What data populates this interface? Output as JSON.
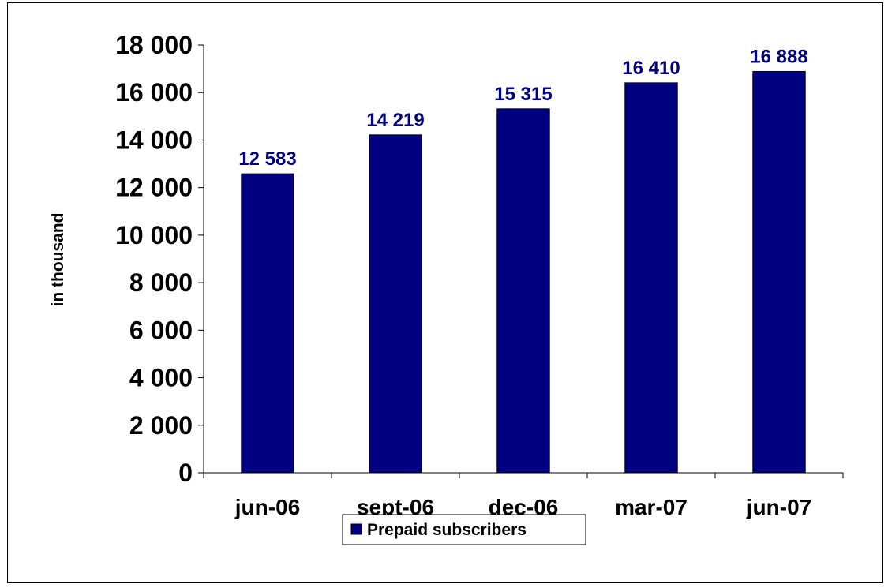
{
  "chart_data": {
    "type": "bar",
    "categories": [
      "jun-06",
      "sept-06",
      "dec-06",
      "mar-07",
      "jun-07"
    ],
    "series": [
      {
        "name": "Prepaid subscribers",
        "values": [
          12583,
          14219,
          15315,
          16410,
          16888
        ],
        "data_labels": [
          "12 583",
          "14 219",
          "15 315",
          "16 410",
          "16 888"
        ]
      }
    ],
    "ylabel": "in thousand",
    "xlabel": "",
    "ylim": [
      0,
      18000
    ],
    "y_ticks": [
      0,
      2000,
      4000,
      6000,
      8000,
      10000,
      12000,
      14000,
      16000,
      18000
    ],
    "y_tick_labels": [
      "0",
      "2 000",
      "4 000",
      "6 000",
      "8 000",
      "10 000",
      "12 000",
      "14 000",
      "16 000",
      "18 000"
    ],
    "grid": false,
    "legend_position": "bottom",
    "colors": {
      "bar": "#000080",
      "data_label": "#000080",
      "axis": "#000000"
    }
  }
}
